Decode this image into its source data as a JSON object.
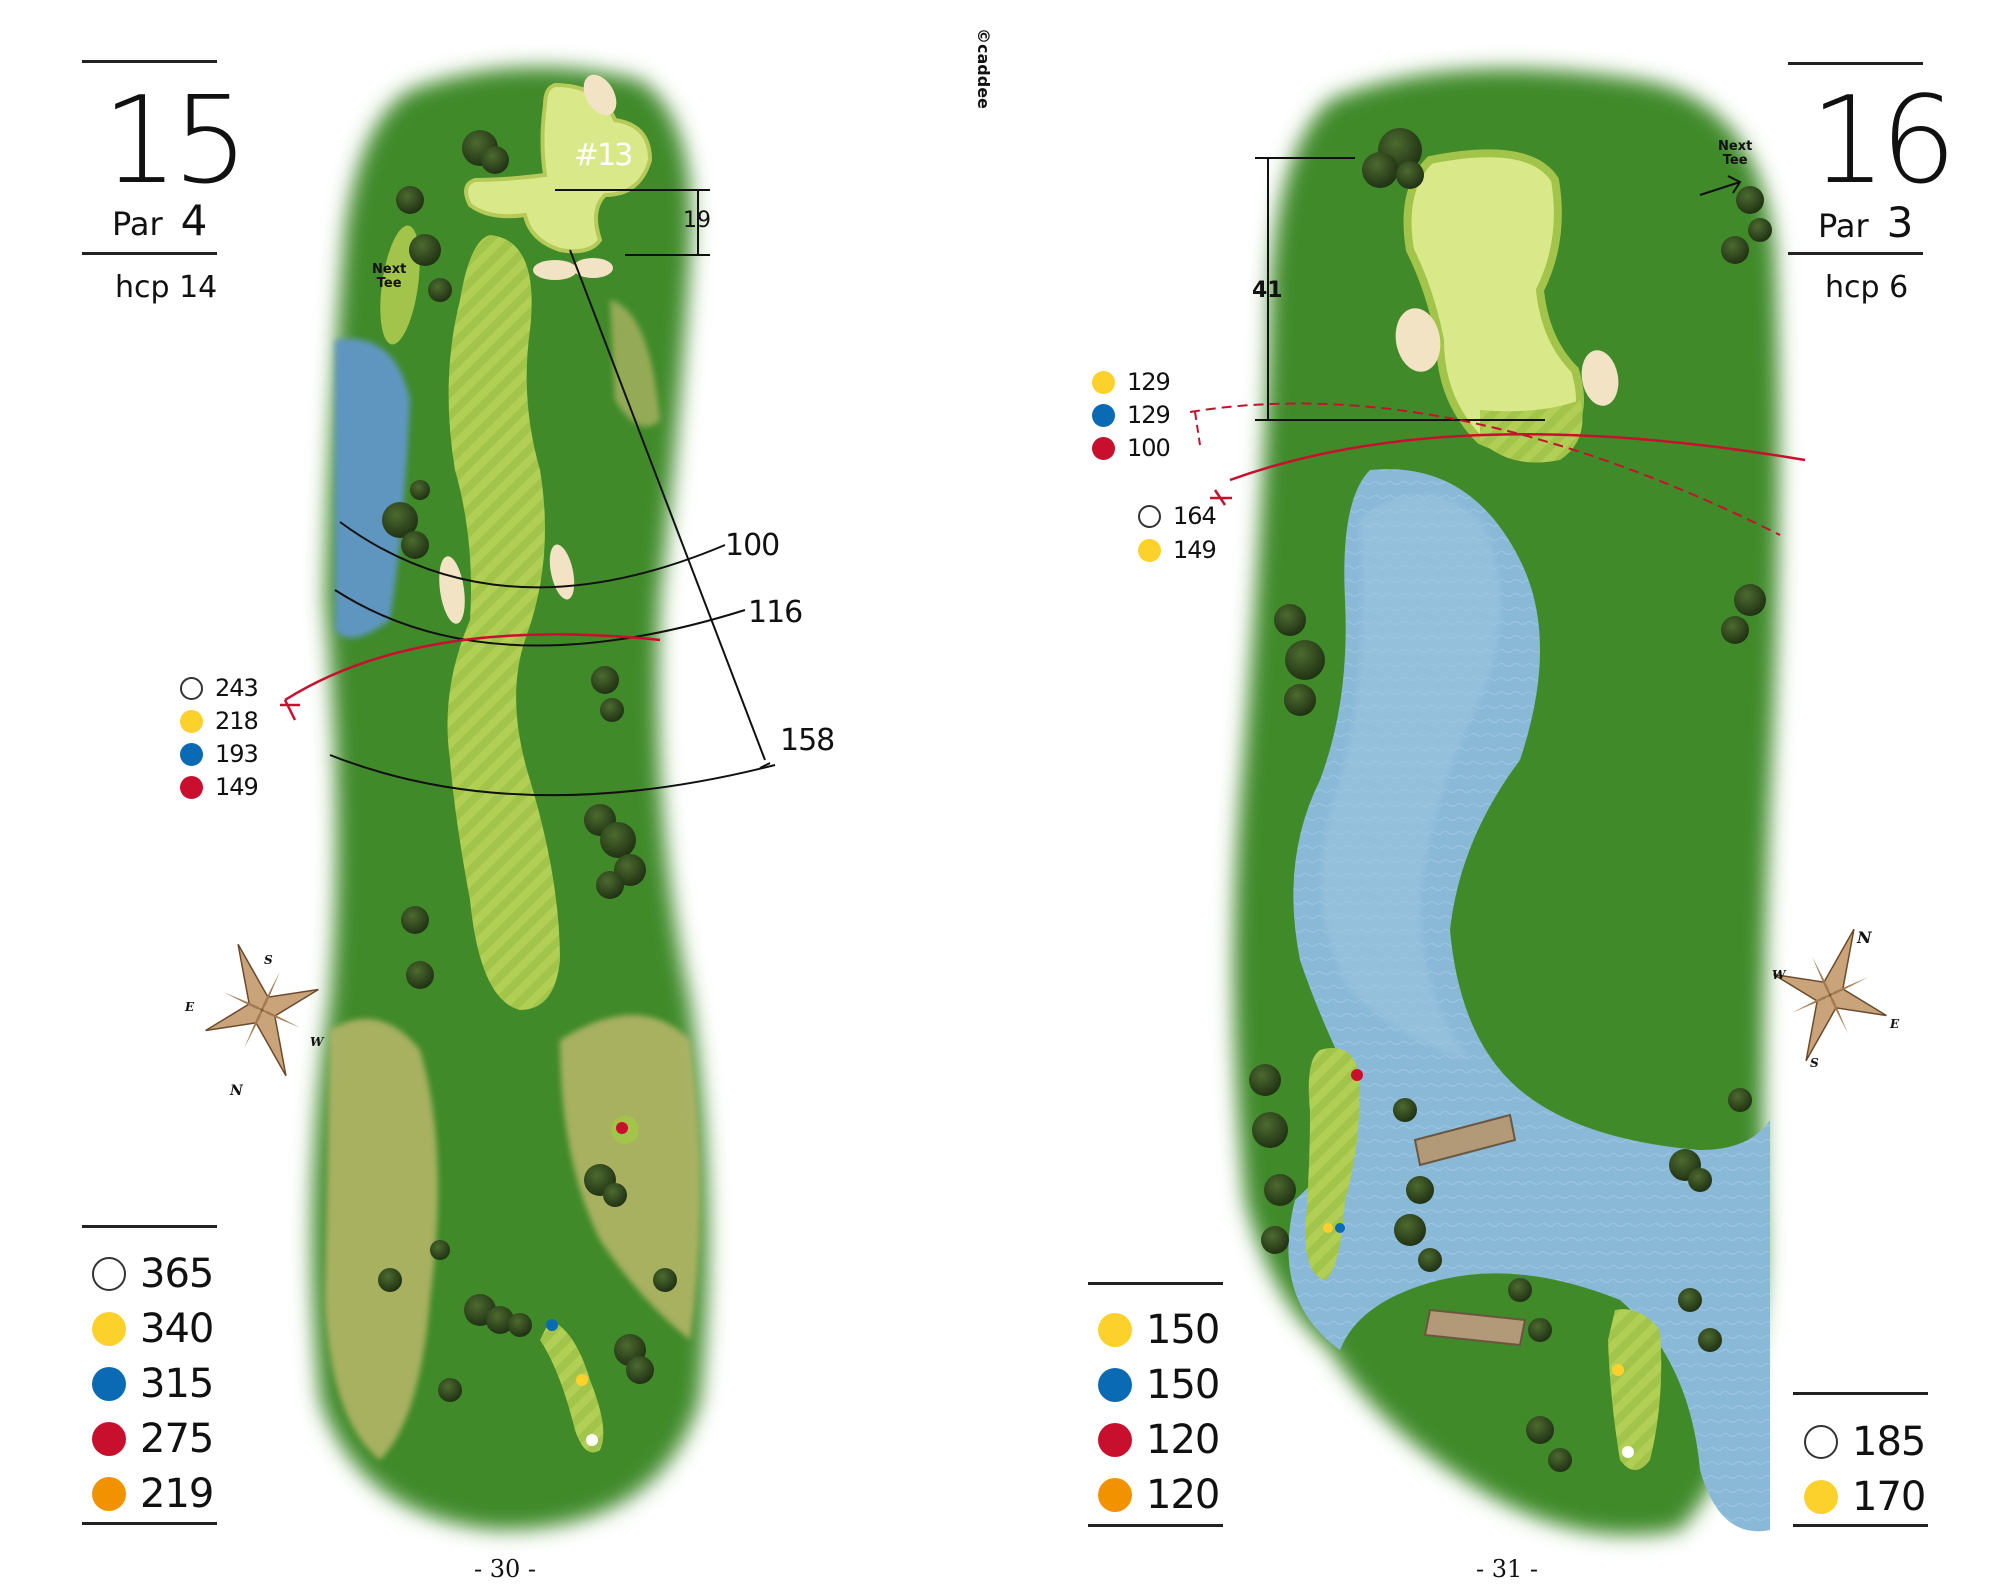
{
  "brand": "©caddee",
  "left": {
    "hole": "15",
    "par_label": "Par",
    "par_value": "4",
    "hcp": "hcp 14",
    "next_tee": [
      "Next",
      "Tee"
    ],
    "green_label": "#13",
    "green_depth": "19",
    "layup_markers": [
      {
        "color": "white",
        "value": "243"
      },
      {
        "color": "yellow",
        "value": "218"
      },
      {
        "color": "blue",
        "value": "193"
      },
      {
        "color": "red",
        "value": "149"
      }
    ],
    "distance_arcs": [
      "100",
      "116",
      "158"
    ],
    "compass": {
      "n": "N",
      "s": "S",
      "e": "E",
      "w": "W"
    },
    "tee_lengths": [
      {
        "color": "white",
        "value": "365"
      },
      {
        "color": "yellow",
        "value": "340"
      },
      {
        "color": "blue",
        "value": "315"
      },
      {
        "color": "red",
        "value": "275"
      },
      {
        "color": "orange",
        "value": "219"
      }
    ],
    "page": "- 30 -"
  },
  "right": {
    "hole": "16",
    "par_label": "Par",
    "par_value": "3",
    "hcp": "hcp 6",
    "next_tee": [
      "Next",
      "Tee"
    ],
    "green_depth": "41",
    "carry_markers_top": [
      {
        "color": "yellow",
        "value": "129"
      },
      {
        "color": "blue",
        "value": "129"
      },
      {
        "color": "red",
        "value": "100"
      }
    ],
    "carry_markers_bottom": [
      {
        "color": "white",
        "value": "164"
      },
      {
        "color": "yellow",
        "value": "149"
      }
    ],
    "compass": {
      "n": "N",
      "s": "S",
      "e": "E",
      "w": "W"
    },
    "tee_lengths_left": [
      {
        "color": "yellow",
        "value": "150"
      },
      {
        "color": "blue",
        "value": "150"
      },
      {
        "color": "red",
        "value": "120"
      },
      {
        "color": "orange",
        "value": "120"
      }
    ],
    "tee_lengths_right": [
      {
        "color": "white",
        "value": "185"
      },
      {
        "color": "yellow",
        "value": "170"
      }
    ],
    "page": "- 31 -"
  },
  "colors": {
    "white": "#ffffff",
    "yellow": "#fdd12c",
    "blue": "#0b6ab4",
    "red": "#c8102e",
    "orange": "#f39200",
    "rough": "#3f8a2a",
    "fairway": "#a9c94a",
    "green": "#d9e98a",
    "water": "#7fb3d5",
    "sand": "#f2e3c4",
    "scrub": "#b9b86a"
  }
}
